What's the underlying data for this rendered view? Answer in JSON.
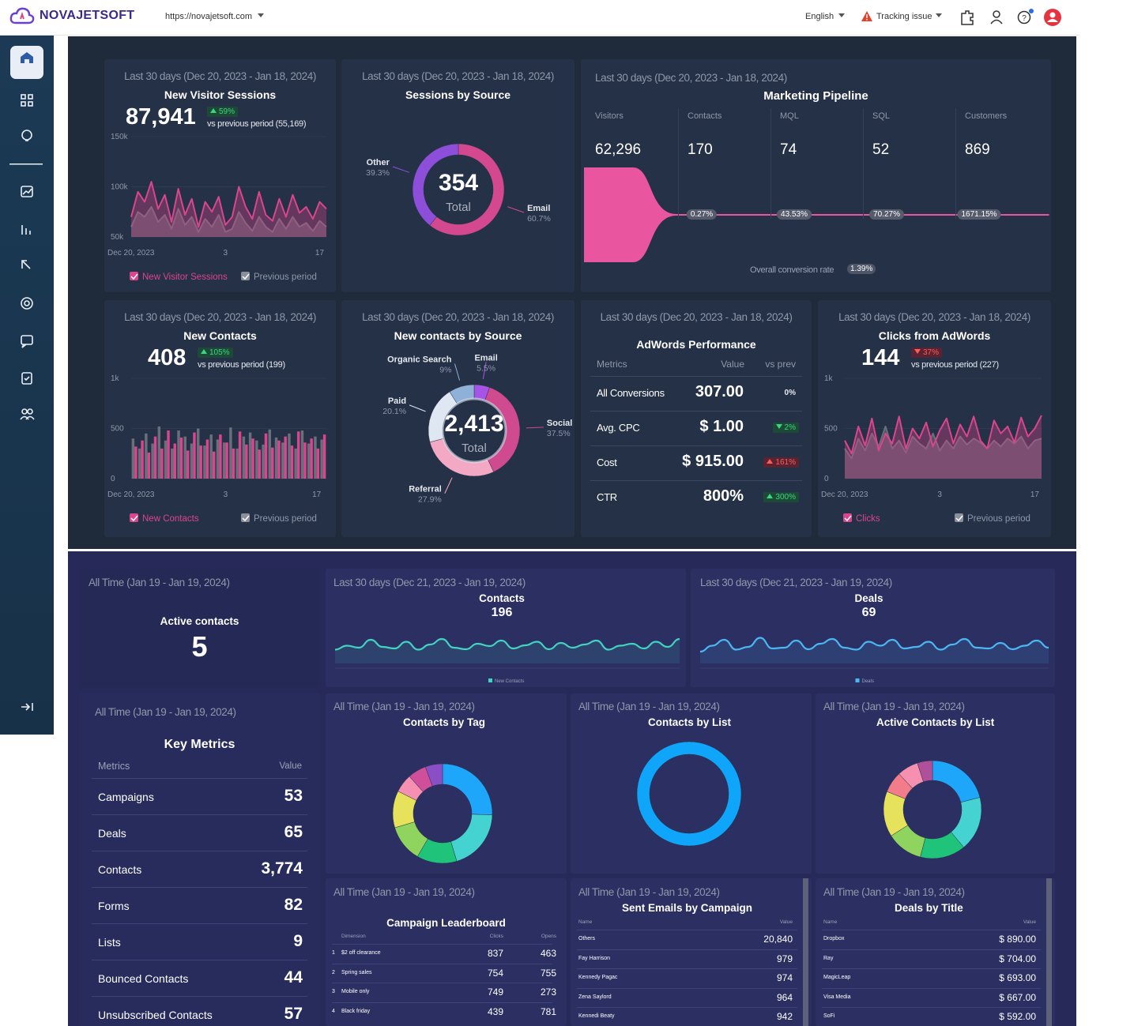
{
  "header": {
    "brand": "NOVAJETSOFT",
    "url": "https://novajetsoft.com",
    "language": "English",
    "alert": "Tracking issue"
  },
  "top": {
    "visitor_sessions": {
      "period": "Last 30 days (Dec 20, 2023 - Jan 18, 2024)",
      "title": "New Visitor Sessions",
      "value": "87,941",
      "change": "59%",
      "change_direction": "up",
      "tone": "good",
      "comparison": "vs previous period (55,169)",
      "chart_data": {
        "type": "area",
        "ylim": [
          50000,
          150000
        ],
        "yticks": [
          {
            "value": 150000,
            "label": "150k"
          },
          {
            "value": 100000,
            "label": "100k"
          },
          {
            "value": 50000,
            "label": "50k"
          }
        ],
        "categories": [
          "Dec 20, 2023",
          null,
          null,
          null,
          null,
          null,
          null,
          null,
          null,
          null,
          null,
          null,
          null,
          null,
          "3",
          null,
          null,
          null,
          null,
          null,
          null,
          null,
          null,
          null,
          null,
          null,
          null,
          null,
          "17",
          null
        ],
        "series": [
          {
            "name": "New Visitor Sessions",
            "color": "#d9468d",
            "values": [
              70000,
              95000,
              85000,
              105000,
              78000,
              92000,
              65000,
              98000,
              72000,
              88000,
              60000,
              85000,
              75000,
              90000,
              62000,
              70000,
              100000,
              80000,
              68000,
              95000,
              72000,
              66000,
              88000,
              70000,
              92000,
              74000,
              80000,
              68000,
              85000,
              78000
            ]
          },
          {
            "name": "Previous period",
            "color": "#6a6f7c",
            "values": [
              60000,
              75000,
              70000,
              80000,
              65000,
              72000,
              58000,
              78000,
              62000,
              70000,
              55000,
              68000,
              60000,
              72000,
              55000,
              58000,
              75000,
              64000,
              56000,
              70000,
              60000,
              55000,
              68000,
              58000,
              70000,
              60000,
              64000,
              56000,
              66000,
              60000
            ]
          }
        ]
      }
    },
    "sessions_by_source": {
      "period": "Last 30 days (Dec 20, 2023 - Jan 18, 2024)",
      "title": "Sessions by Source",
      "total": "354",
      "total_label": "Total",
      "chart_data": {
        "type": "donut",
        "categories": [
          "Email",
          "Other"
        ],
        "values": [
          60.7,
          39.3
        ],
        "value_labels": [
          "60.7%",
          "39.3%"
        ],
        "colors": [
          "#d4488f",
          "#8d4fd9"
        ]
      }
    },
    "pipeline": {
      "period": "Last 30 days (Dec 20, 2023 - Jan 18, 2024)",
      "title": "Marketing Pipeline",
      "chart_data": {
        "type": "funnel",
        "categories": [
          "Visitors",
          "Contacts",
          "MQL",
          "SQL",
          "Customers"
        ],
        "values": [
          62296,
          170,
          74,
          52,
          869
        ],
        "value_labels": [
          "62,296",
          "170",
          "74",
          "52",
          "869"
        ],
        "color": "#e9559f"
      },
      "rates": [
        "0.27%",
        "43.53%",
        "70.27%",
        "1671.15%"
      ],
      "overall_label": "Overall conversion rate",
      "overall_rate": "1.39%"
    },
    "new_contacts": {
      "period": "Last 30 days (Dec 20, 2023 - Jan 18, 2024)",
      "title": "New Contacts",
      "value": "408",
      "change": "105%",
      "change_direction": "up",
      "tone": "good",
      "comparison": "vs previous period (199)",
      "chart_data": {
        "type": "bar",
        "ylim": [
          0,
          1000
        ],
        "yticks": [
          {
            "value": 1000,
            "label": "1k"
          },
          500,
          0
        ],
        "categories": [
          "Dec 20, 2023",
          null,
          null,
          null,
          null,
          null,
          null,
          null,
          null,
          null,
          null,
          null,
          null,
          null,
          "3",
          null,
          null,
          null,
          null,
          null,
          null,
          null,
          null,
          null,
          null,
          null,
          null,
          null,
          "17",
          null
        ],
        "series": [
          {
            "name": "New Contacts",
            "color": "#d9468d",
            "values": [
              320,
              380,
              260,
              420,
              300,
              480,
              350,
              410,
              280,
              460,
              330,
              390,
              270,
              440,
              360,
              300,
              470,
              340,
              400,
              290,
              450,
              310,
              380,
              420,
              330,
              470,
              360,
              400,
              300,
              440
            ]
          },
          {
            "name": "Previous period",
            "color": "#6a6f7c",
            "values": [
              400,
              300,
              450,
              350,
              520,
              380,
              300,
              480,
              420,
              350,
              500,
              330,
              440,
              390,
              360,
              510,
              300,
              420,
              460,
              380,
              340,
              490,
              410,
              360,
              450,
              300,
              480,
              350,
              420,
              390
            ]
          }
        ]
      }
    },
    "contacts_by_source": {
      "period": "Last 30 days (Dec 20, 2023 - Jan 18, 2024)",
      "title": "New contacts by Source",
      "total": "2,413",
      "total_label": "Total",
      "chart_data": {
        "type": "donut",
        "categories": [
          "Email",
          "Social",
          "Referral",
          "Paid",
          "Organic Search"
        ],
        "values": [
          5.5,
          37.5,
          27.9,
          20.1,
          9
        ],
        "value_labels": [
          "5.5%",
          "37.5%",
          "27.9%",
          "20.1%",
          "9%"
        ],
        "colors": [
          "#a654e6",
          "#cf4a8e",
          "#f3a9c4",
          "#dfe7f3",
          "#8fb1d8"
        ]
      }
    },
    "adwords": {
      "period": "Last 30 days (Dec 20, 2023 - Jan 18, 2024)",
      "title": "AdWords Performance",
      "columns": [
        "Metrics",
        "Value",
        "vs prev"
      ],
      "rows": [
        {
          "metric": "All Conversions",
          "value": "307.00",
          "change": "0%",
          "direction": "flat",
          "tone": "neutral"
        },
        {
          "metric": "Avg. CPC",
          "value": "$ 1.00",
          "change": "2%",
          "direction": "down",
          "tone": "good"
        },
        {
          "metric": "Cost",
          "value": "$ 915.00",
          "change": "161%",
          "direction": "up",
          "tone": "bad"
        },
        {
          "metric": "CTR",
          "value": "800%",
          "change": "300%",
          "direction": "up",
          "tone": "good"
        }
      ]
    },
    "clicks": {
      "period": "Last 30 days (Dec 20, 2023 - Jan 18, 2024)",
      "title": "Clicks from AdWords",
      "value": "144",
      "change": "37%",
      "change_direction": "down",
      "tone": "bad",
      "comparison": "vs previous period (227)",
      "chart_data": {
        "type": "area",
        "ylim": [
          0,
          1000
        ],
        "yticks": [
          {
            "value": 1000,
            "label": "1k"
          },
          500,
          0
        ],
        "categories": [
          "Dec 20, 2023",
          null,
          null,
          null,
          null,
          null,
          null,
          null,
          null,
          null,
          null,
          null,
          null,
          null,
          "3",
          null,
          null,
          null,
          null,
          null,
          null,
          null,
          null,
          null,
          null,
          null,
          null,
          null,
          "17",
          null
        ],
        "series": [
          {
            "name": "Clicks",
            "color": "#d9468d",
            "values": [
              380,
              250,
              520,
              330,
              600,
              280,
              450,
              350,
              620,
              300,
              500,
              400,
              560,
              320,
              480,
              600,
              350,
              540,
              420,
              620,
              380,
              300,
              580,
              450,
              520,
              360,
              610,
              420,
              500,
              630
            ]
          },
          {
            "name": "Previous period",
            "color": "#6a6f7c",
            "values": [
              300,
              200,
              400,
              280,
              450,
              320,
              520,
              300,
              380,
              260,
              420,
              350,
              300,
              450,
              280,
              380,
              300,
              420,
              340,
              400,
              360,
              300,
              380,
              320,
              400,
              350,
              420,
              300,
              380,
              400
            ]
          }
        ]
      }
    }
  },
  "bottom": {
    "active_contacts": {
      "period": "All Time (Jan 19 - Jan 19, 2024)",
      "title": "Active contacts",
      "value": "5"
    },
    "contacts": {
      "period": "Last 30 days (Dec 21, 2023 - Jan 19, 2024)",
      "title": "Contacts",
      "value": "196",
      "chart_data": {
        "type": "line",
        "ylim": [
          0,
          100
        ],
        "series": [
          {
            "name": "New Contacts",
            "color": "#41d3bf",
            "values": [
              35,
              45,
              40,
              60,
              42,
              38,
              55,
              35,
              48,
              62,
              40,
              36,
              50,
              44,
              58,
              38,
              46,
              55,
              36,
              52,
              40,
              48,
              58,
              35,
              45,
              50,
              38,
              55,
              42,
              62
            ]
          }
        ]
      }
    },
    "deals": {
      "period": "Last 30 days (Dec 21, 2023 - Jan 19, 2024)",
      "title": "Deals",
      "value": "69",
      "chart_data": {
        "type": "line",
        "ylim": [
          0,
          100
        ],
        "series": [
          {
            "name": "Deals",
            "color": "#4cb6f2",
            "values": [
              30,
              45,
              60,
              35,
              42,
              65,
              38,
              40,
              58,
              36,
              50,
              62,
              40,
              35,
              55,
              45,
              60,
              38,
              42,
              55,
              35,
              48,
              62,
              40,
              38,
              52,
              36,
              45,
              58,
              40
            ]
          }
        ]
      }
    },
    "key_metrics": {
      "period": "All Time (Jan 19 - Jan 19, 2024)",
      "title": "Key Metrics",
      "columns": [
        "Metrics",
        "Value"
      ],
      "rows": [
        [
          "Campaigns",
          "53"
        ],
        [
          "Deals",
          "65"
        ],
        [
          "Contacts",
          "3,774"
        ],
        [
          "Forms",
          "82"
        ],
        [
          "Lists",
          "9"
        ],
        [
          "Bounced Contacts",
          "44"
        ],
        [
          "Unsubscribed Contacts",
          "57"
        ]
      ]
    },
    "contacts_by_tag": {
      "period": "All Time (Jan 19 - Jan 19, 2024)",
      "title": "Contacts by Tag",
      "chart_data": {
        "type": "donut",
        "values": [
          25.4,
          20,
          13,
          12,
          12,
          6,
          6,
          5.6
        ],
        "colors": [
          "#1ea6fb",
          "#45d3d2",
          "#1fc47a",
          "#8fd45e",
          "#e6e25b",
          "#f590b1",
          "#cf4f9a",
          "#8a4fc6"
        ]
      }
    },
    "contacts_by_list": {
      "period": "All Time (Jan 19 - Jan 19, 2024)",
      "title": "Contacts by List",
      "chart_data": {
        "type": "donut",
        "values": [
          100
        ],
        "colors": [
          "#0fa5fb"
        ]
      }
    },
    "active_contacts_by_list": {
      "period": "All Time (Jan 19 - Jan 19, 2024)",
      "title": "Active Contacts by List",
      "chart_data": {
        "type": "donut",
        "values": [
          21,
          18,
          15,
          12,
          15,
          7,
          7,
          5
        ],
        "colors": [
          "#1ea6fb",
          "#45d3d2",
          "#1fc47a",
          "#8fd45e",
          "#e6e25b",
          "#f27c8a",
          "#f590b1",
          "#b0509a"
        ]
      }
    },
    "campaign_leaderboard": {
      "period": "All Time (Jan 19 - Jan 19, 2024)",
      "title": "Campaign Leaderboard",
      "columns": [
        "Dimension",
        "Clicks",
        "Opens"
      ],
      "rows": [
        [
          "1",
          "$2 off clearance",
          "837",
          "463"
        ],
        [
          "2",
          "Spring sales",
          "754",
          "755"
        ],
        [
          "3",
          "Mobile only",
          "749",
          "273"
        ],
        [
          "4",
          "Black friday",
          "439",
          "781"
        ]
      ]
    },
    "sent_emails": {
      "period": "All Time (Jan 19 - Jan 19, 2024)",
      "title": "Sent Emails by Campaign",
      "columns": [
        "Name",
        "Value"
      ],
      "rows": [
        [
          "Others",
          "20,840"
        ],
        [
          "Fay Harrison",
          "979"
        ],
        [
          "Kennedy Pagac",
          "974"
        ],
        [
          "Zena Saylord",
          "964"
        ],
        [
          "Kennedi Beaty",
          "942"
        ]
      ]
    },
    "deals_by_title": {
      "period": "All Time (Jan 19 - Jan 19, 2024)",
      "title": "Deals by Title",
      "columns": [
        "Name",
        "Value"
      ],
      "rows": [
        [
          "Dropbox",
          "$ 890.00"
        ],
        [
          "Ray",
          "$ 704.00"
        ],
        [
          "MagicLeap",
          "$ 693.00"
        ],
        [
          "Visa Media",
          "$ 667.00"
        ],
        [
          "SoFi",
          "$ 592.00"
        ]
      ]
    }
  }
}
